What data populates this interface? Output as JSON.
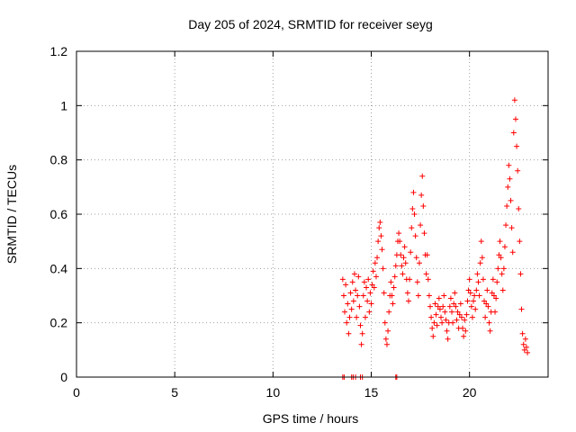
{
  "chart_data": {
    "type": "scatter",
    "title": "Day 205 of 2024, SRMTID for receiver seyg",
    "xlabel": "GPS time / hours",
    "ylabel": "SRMTID / TECUs",
    "xlim": [
      0,
      24
    ],
    "ylim": [
      0,
      1.2
    ],
    "x_ticks": [
      0,
      5,
      10,
      15,
      20
    ],
    "x_tick_labels": [
      "0",
      "5",
      "10",
      "15",
      "20"
    ],
    "y_ticks": [
      0,
      0.2,
      0.4,
      0.6,
      0.8,
      1.0,
      1.2
    ],
    "y_tick_labels": [
      "0",
      "0.2",
      "0.4",
      "0.6",
      "0.8",
      "1",
      "1.2"
    ],
    "grid": true,
    "marker": "plus",
    "color": "#ff0000",
    "series": [
      {
        "name": "SRMTID",
        "points": [
          [
            13.55,
            0.36
          ],
          [
            13.6,
            0.3
          ],
          [
            13.65,
            0.24
          ],
          [
            13.7,
            0.34
          ],
          [
            13.75,
            0.2
          ],
          [
            13.8,
            0.27
          ],
          [
            13.85,
            0.16
          ],
          [
            13.9,
            0.22
          ],
          [
            13.95,
            0.31
          ],
          [
            14.0,
            0.25
          ],
          [
            14.05,
            0.35
          ],
          [
            14.1,
            0.28
          ],
          [
            14.15,
            0.38
          ],
          [
            14.2,
            0.32
          ],
          [
            14.25,
            0.22
          ],
          [
            14.3,
            0.3
          ],
          [
            14.35,
            0.37
          ],
          [
            14.4,
            0.26
          ],
          [
            14.45,
            0.19
          ],
          [
            14.5,
            0.12
          ],
          [
            14.55,
            0.16
          ],
          [
            14.6,
            0.3
          ],
          [
            14.65,
            0.35
          ],
          [
            14.7,
            0.22
          ],
          [
            14.75,
            0.33
          ],
          [
            14.8,
            0.28
          ],
          [
            14.85,
            0.36
          ],
          [
            14.9,
            0.24
          ],
          [
            14.95,
            0.31
          ],
          [
            15.0,
            0.27
          ],
          [
            15.05,
            0.34
          ],
          [
            15.1,
            0.39
          ],
          [
            15.15,
            0.33
          ],
          [
            15.2,
            0.42
          ],
          [
            15.25,
            0.37
          ],
          [
            15.3,
            0.44
          ],
          [
            15.35,
            0.5
          ],
          [
            15.4,
            0.55
          ],
          [
            15.45,
            0.57
          ],
          [
            15.5,
            0.52
          ],
          [
            15.55,
            0.47
          ],
          [
            15.6,
            0.4
          ],
          [
            15.65,
            0.31
          ],
          [
            15.7,
            0.2
          ],
          [
            15.75,
            0.14
          ],
          [
            15.8,
            0.12
          ],
          [
            15.85,
            0.17
          ],
          [
            15.9,
            0.24
          ],
          [
            15.95,
            0.3
          ],
          [
            16.0,
            0.35
          ],
          [
            16.05,
            0.3
          ],
          [
            16.1,
            0.27
          ],
          [
            16.15,
            0.33
          ],
          [
            16.2,
            0.37
          ],
          [
            16.25,
            0.41
          ],
          [
            16.3,
            0.45
          ],
          [
            16.35,
            0.5
          ],
          [
            16.4,
            0.53
          ],
          [
            16.45,
            0.5
          ],
          [
            16.5,
            0.45
          ],
          [
            16.55,
            0.41
          ],
          [
            16.6,
            0.38
          ],
          [
            16.65,
            0.44
          ],
          [
            16.7,
            0.48
          ],
          [
            16.75,
            0.42
          ],
          [
            16.8,
            0.36
          ],
          [
            16.85,
            0.31
          ],
          [
            16.9,
            0.28
          ],
          [
            16.95,
            0.36
          ],
          [
            17.0,
            0.46
          ],
          [
            17.05,
            0.55
          ],
          [
            17.1,
            0.62
          ],
          [
            17.15,
            0.68
          ],
          [
            17.2,
            0.6
          ],
          [
            17.25,
            0.52
          ],
          [
            17.3,
            0.44
          ],
          [
            17.35,
            0.35
          ],
          [
            17.4,
            0.3
          ],
          [
            17.45,
            0.42
          ],
          [
            17.5,
            0.56
          ],
          [
            17.55,
            0.67
          ],
          [
            17.6,
            0.74
          ],
          [
            17.65,
            0.63
          ],
          [
            17.7,
            0.53
          ],
          [
            17.75,
            0.45
          ],
          [
            17.8,
            0.38
          ],
          [
            17.85,
            0.45
          ],
          [
            17.9,
            0.36
          ],
          [
            17.95,
            0.3
          ],
          [
            18.0,
            0.26
          ],
          [
            18.05,
            0.22
          ],
          [
            18.1,
            0.18
          ],
          [
            18.15,
            0.15
          ],
          [
            18.2,
            0.2
          ],
          [
            18.25,
            0.27
          ],
          [
            18.3,
            0.23
          ],
          [
            18.35,
            0.19
          ],
          [
            18.4,
            0.26
          ],
          [
            18.45,
            0.29
          ],
          [
            18.5,
            0.25
          ],
          [
            18.55,
            0.22
          ],
          [
            18.6,
            0.2
          ],
          [
            18.65,
            0.26
          ],
          [
            18.7,
            0.3
          ],
          [
            18.75,
            0.24
          ],
          [
            18.8,
            0.21
          ],
          [
            18.85,
            0.17
          ],
          [
            18.9,
            0.14
          ],
          [
            18.95,
            0.2
          ],
          [
            19.0,
            0.26
          ],
          [
            19.05,
            0.29
          ],
          [
            19.1,
            0.24
          ],
          [
            19.15,
            0.2
          ],
          [
            19.2,
            0.27
          ],
          [
            19.25,
            0.31
          ],
          [
            19.3,
            0.26
          ],
          [
            19.35,
            0.21
          ],
          [
            19.4,
            0.24
          ],
          [
            19.45,
            0.18
          ],
          [
            19.5,
            0.23
          ],
          [
            19.55,
            0.27
          ],
          [
            19.6,
            0.22
          ],
          [
            19.65,
            0.18
          ],
          [
            19.7,
            0.15
          ],
          [
            19.75,
            0.21
          ],
          [
            19.8,
            0.17
          ],
          [
            19.85,
            0.23
          ],
          [
            19.9,
            0.28
          ],
          [
            19.95,
            0.32
          ],
          [
            20.0,
            0.36
          ],
          [
            20.05,
            0.31
          ],
          [
            20.1,
            0.26
          ],
          [
            20.15,
            0.22
          ],
          [
            20.2,
            0.28
          ],
          [
            20.25,
            0.3
          ],
          [
            20.3,
            0.25
          ],
          [
            20.35,
            0.32
          ],
          [
            20.4,
            0.38
          ],
          [
            20.45,
            0.35
          ],
          [
            20.5,
            0.3
          ],
          [
            20.55,
            0.42
          ],
          [
            20.6,
            0.5
          ],
          [
            20.65,
            0.44
          ],
          [
            20.7,
            0.36
          ],
          [
            20.75,
            0.28
          ],
          [
            20.8,
            0.22
          ],
          [
            20.85,
            0.27
          ],
          [
            20.9,
            0.32
          ],
          [
            20.95,
            0.26
          ],
          [
            21.0,
            0.2
          ],
          [
            21.05,
            0.17
          ],
          [
            21.1,
            0.24
          ],
          [
            21.15,
            0.31
          ],
          [
            21.2,
            0.36
          ],
          [
            21.25,
            0.3
          ],
          [
            21.3,
            0.24
          ],
          [
            21.35,
            0.29
          ],
          [
            21.4,
            0.35
          ],
          [
            21.45,
            0.4
          ],
          [
            21.5,
            0.45
          ],
          [
            21.55,
            0.5
          ],
          [
            21.6,
            0.44
          ],
          [
            21.65,
            0.38
          ],
          [
            21.7,
            0.32
          ],
          [
            21.75,
            0.4
          ],
          [
            21.8,
            0.48
          ],
          [
            21.85,
            0.56
          ],
          [
            21.9,
            0.63
          ],
          [
            21.95,
            0.7
          ],
          [
            22.0,
            0.78
          ],
          [
            22.05,
            0.73
          ],
          [
            22.1,
            0.65
          ],
          [
            22.15,
            0.55
          ],
          [
            22.2,
            0.46
          ],
          [
            22.25,
            0.9
          ],
          [
            22.3,
            1.02
          ],
          [
            22.35,
            0.95
          ],
          [
            22.4,
            0.85
          ],
          [
            22.45,
            0.76
          ],
          [
            22.5,
            0.62
          ],
          [
            22.55,
            0.5
          ],
          [
            22.6,
            0.38
          ],
          [
            22.65,
            0.25
          ],
          [
            22.7,
            0.16
          ],
          [
            22.75,
            0.12
          ],
          [
            22.8,
            0.1
          ],
          [
            22.85,
            0.14
          ],
          [
            22.9,
            0.11
          ],
          [
            22.95,
            0.09
          ]
        ]
      }
    ],
    "zero_markers_x": [
      13.55,
      13.62,
      14.0,
      14.08,
      14.2,
      14.45,
      14.55,
      16.25,
      16.3
    ]
  }
}
